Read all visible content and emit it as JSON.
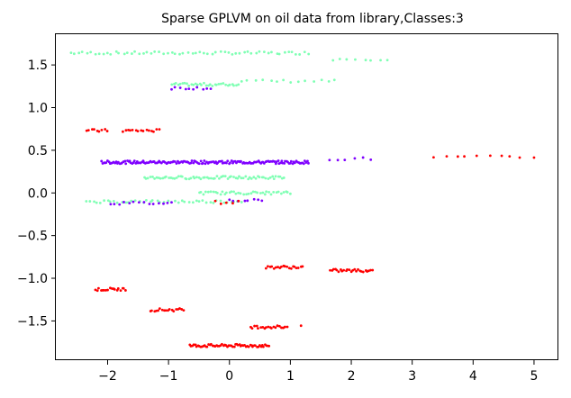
{
  "chart_data": {
    "type": "scatter",
    "title": "Sparse GPLVM on oil data from library,Classes:3",
    "xlabel": "",
    "ylabel": "",
    "xlim": [
      -2.85,
      5.4
    ],
    "ylim": [
      -1.96,
      1.86
    ],
    "grid": false,
    "xticks": [
      -2,
      -1,
      0,
      1,
      2,
      3,
      4,
      5
    ],
    "xtick_labels": [
      "−2",
      "−1",
      "0",
      "1",
      "2",
      "3",
      "4",
      "5"
    ],
    "yticks": [
      1.5,
      1.0,
      0.5,
      0.0,
      -0.5,
      -1.0,
      -1.5
    ],
    "ytick_labels": [
      "1.5",
      "1.0",
      "0.5",
      "0.0",
      "−0.5",
      "−1.0",
      "−1.5"
    ],
    "colors": {
      "class_1": "#7f00ff",
      "class_2": "#80ffb4",
      "class_3": "#ff0000"
    },
    "clusters": [
      {
        "color": "#80ffb4",
        "y": 1.64,
        "x_start": -2.6,
        "x_end": 1.3,
        "n": 60
      },
      {
        "color": "#80ffb4",
        "y": 1.57,
        "x_start": 1.7,
        "x_end": 2.6,
        "n": 8
      },
      {
        "color": "#80ffb4",
        "y": 1.31,
        "x_start": 0.2,
        "x_end": 1.75,
        "n": 14
      },
      {
        "color": "#80ffb4",
        "y": 1.27,
        "x_start": -0.95,
        "x_end": 0.15,
        "n": 32
      },
      {
        "color": "#7f00ff",
        "y": 1.23,
        "x_start": -0.95,
        "x_end": -0.3,
        "n": 10
      },
      {
        "color": "#ff0000",
        "y": 0.73,
        "x_start": -2.35,
        "x_end": -2.0,
        "n": 9
      },
      {
        "color": "#ff0000",
        "y": 0.73,
        "x_start": -1.75,
        "x_end": -1.5,
        "n": 7
      },
      {
        "color": "#ff0000",
        "y": 0.73,
        "x_start": -1.45,
        "x_end": -1.15,
        "n": 8
      },
      {
        "color": "#7f00ff",
        "y": 0.36,
        "x_start": -2.1,
        "x_end": 1.3,
        "n": 170
      },
      {
        "color": "#7f00ff",
        "y": 0.4,
        "x_start": 1.6,
        "x_end": 2.35,
        "n": 6
      },
      {
        "color": "#ff0000",
        "y": 0.42,
        "x_start": 3.35,
        "x_end": 5.0,
        "n": 10
      },
      {
        "color": "#80ffb4",
        "y": 0.18,
        "x_start": -1.4,
        "x_end": 0.9,
        "n": 70
      },
      {
        "color": "#80ffb4",
        "y": 0.0,
        "x_start": -0.5,
        "x_end": 1.0,
        "n": 40
      },
      {
        "color": "#80ffb4",
        "y": -0.1,
        "x_start": -2.35,
        "x_end": 0.2,
        "n": 45
      },
      {
        "color": "#7f00ff",
        "y": -0.12,
        "x_start": -1.95,
        "x_end": -0.95,
        "n": 14
      },
      {
        "color": "#7f00ff",
        "y": -0.08,
        "x_start": 0.0,
        "x_end": 0.55,
        "n": 8
      },
      {
        "color": "#ff0000",
        "y": -0.11,
        "x_start": -0.25,
        "x_end": 0.15,
        "n": 5
      },
      {
        "color": "#ff0000",
        "y": -0.87,
        "x_start": 0.6,
        "x_end": 1.2,
        "n": 20
      },
      {
        "color": "#ff0000",
        "y": -0.91,
        "x_start": 1.65,
        "x_end": 2.35,
        "n": 25
      },
      {
        "color": "#ff0000",
        "y": -1.13,
        "x_start": -2.2,
        "x_end": -1.7,
        "n": 18
      },
      {
        "color": "#ff0000",
        "y": -1.37,
        "x_start": -1.3,
        "x_end": -0.75,
        "n": 18
      },
      {
        "color": "#ff0000",
        "y": -1.57,
        "x_start": 0.35,
        "x_end": 0.95,
        "n": 20
      },
      {
        "color": "#ff0000",
        "y": -1.56,
        "x_start": 1.15,
        "x_end": 1.2,
        "n": 1
      },
      {
        "color": "#ff0000",
        "y": -1.79,
        "x_start": -0.65,
        "x_end": 0.65,
        "n": 60
      }
    ]
  }
}
